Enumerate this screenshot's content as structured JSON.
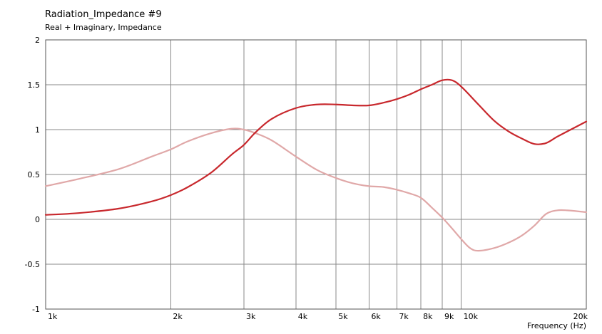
{
  "chart_data": {
    "type": "line",
    "title": "Radiation_Impedance #9",
    "subtitle": "Real + Imaginary, Impedance",
    "xlabel": "Frequency  (Hz)",
    "ylabel": "",
    "xscale": "log",
    "xlim": [
      1000,
      20000
    ],
    "ylim": [
      -1,
      2
    ],
    "grid": true,
    "x_ticks": [
      {
        "value": 1000,
        "label": "1k"
      },
      {
        "value": 2000,
        "label": "2k"
      },
      {
        "value": 3000,
        "label": "3k"
      },
      {
        "value": 4000,
        "label": "4k"
      },
      {
        "value": 5000,
        "label": "5k"
      },
      {
        "value": 6000,
        "label": "6k"
      },
      {
        "value": 7000,
        "label": "7k"
      },
      {
        "value": 8000,
        "label": "8k"
      },
      {
        "value": 9000,
        "label": "9k"
      },
      {
        "value": 10000,
        "label": "10k"
      },
      {
        "value": 20000,
        "label": "20k"
      }
    ],
    "y_ticks": [
      {
        "value": 2,
        "label": "2"
      },
      {
        "value": 1.5,
        "label": "1.5"
      },
      {
        "value": 1,
        "label": "1"
      },
      {
        "value": 0.5,
        "label": "0.5"
      },
      {
        "value": 0,
        "label": "0"
      },
      {
        "value": -0.5,
        "label": "-0.5"
      },
      {
        "value": -1,
        "label": "-1"
      }
    ],
    "series": [
      {
        "color": "#c8282d",
        "points": [
          [
            1000,
            0.05
          ],
          [
            1200,
            0.07
          ],
          [
            1500,
            0.12
          ],
          [
            1800,
            0.2
          ],
          [
            2000,
            0.27
          ],
          [
            2200,
            0.36
          ],
          [
            2500,
            0.52
          ],
          [
            2800,
            0.72
          ],
          [
            3000,
            0.83
          ],
          [
            3200,
            0.97
          ],
          [
            3500,
            1.12
          ],
          [
            4000,
            1.24
          ],
          [
            4500,
            1.28
          ],
          [
            5000,
            1.28
          ],
          [
            5500,
            1.27
          ],
          [
            6000,
            1.27
          ],
          [
            6500,
            1.3
          ],
          [
            7000,
            1.34
          ],
          [
            7500,
            1.39
          ],
          [
            8000,
            1.45
          ],
          [
            8500,
            1.5
          ],
          [
            9000,
            1.55
          ],
          [
            9500,
            1.55
          ],
          [
            10000,
            1.48
          ],
          [
            11000,
            1.28
          ],
          [
            12000,
            1.1
          ],
          [
            13000,
            0.98
          ],
          [
            14000,
            0.9
          ],
          [
            15000,
            0.84
          ],
          [
            16000,
            0.85
          ],
          [
            17000,
            0.92
          ],
          [
            18000,
            0.98
          ],
          [
            20000,
            1.09
          ]
        ]
      },
      {
        "color": "#e0a8a8",
        "points": [
          [
            1000,
            0.37
          ],
          [
            1200,
            0.45
          ],
          [
            1500,
            0.56
          ],
          [
            1800,
            0.7
          ],
          [
            2000,
            0.78
          ],
          [
            2200,
            0.87
          ],
          [
            2500,
            0.96
          ],
          [
            2800,
            1.01
          ],
          [
            3000,
            1.0
          ],
          [
            3200,
            0.96
          ],
          [
            3500,
            0.88
          ],
          [
            4000,
            0.7
          ],
          [
            4500,
            0.55
          ],
          [
            5000,
            0.46
          ],
          [
            5500,
            0.4
          ],
          [
            6000,
            0.37
          ],
          [
            6500,
            0.36
          ],
          [
            7000,
            0.33
          ],
          [
            7500,
            0.29
          ],
          [
            8000,
            0.24
          ],
          [
            8500,
            0.13
          ],
          [
            9000,
            0.02
          ],
          [
            9500,
            -0.1
          ],
          [
            10000,
            -0.22
          ],
          [
            10500,
            -0.32
          ],
          [
            11000,
            -0.35
          ],
          [
            12000,
            -0.32
          ],
          [
            13000,
            -0.26
          ],
          [
            14000,
            -0.18
          ],
          [
            15000,
            -0.07
          ],
          [
            16000,
            0.06
          ],
          [
            17000,
            0.1
          ],
          [
            18000,
            0.1
          ],
          [
            20000,
            0.08
          ]
        ]
      }
    ]
  }
}
